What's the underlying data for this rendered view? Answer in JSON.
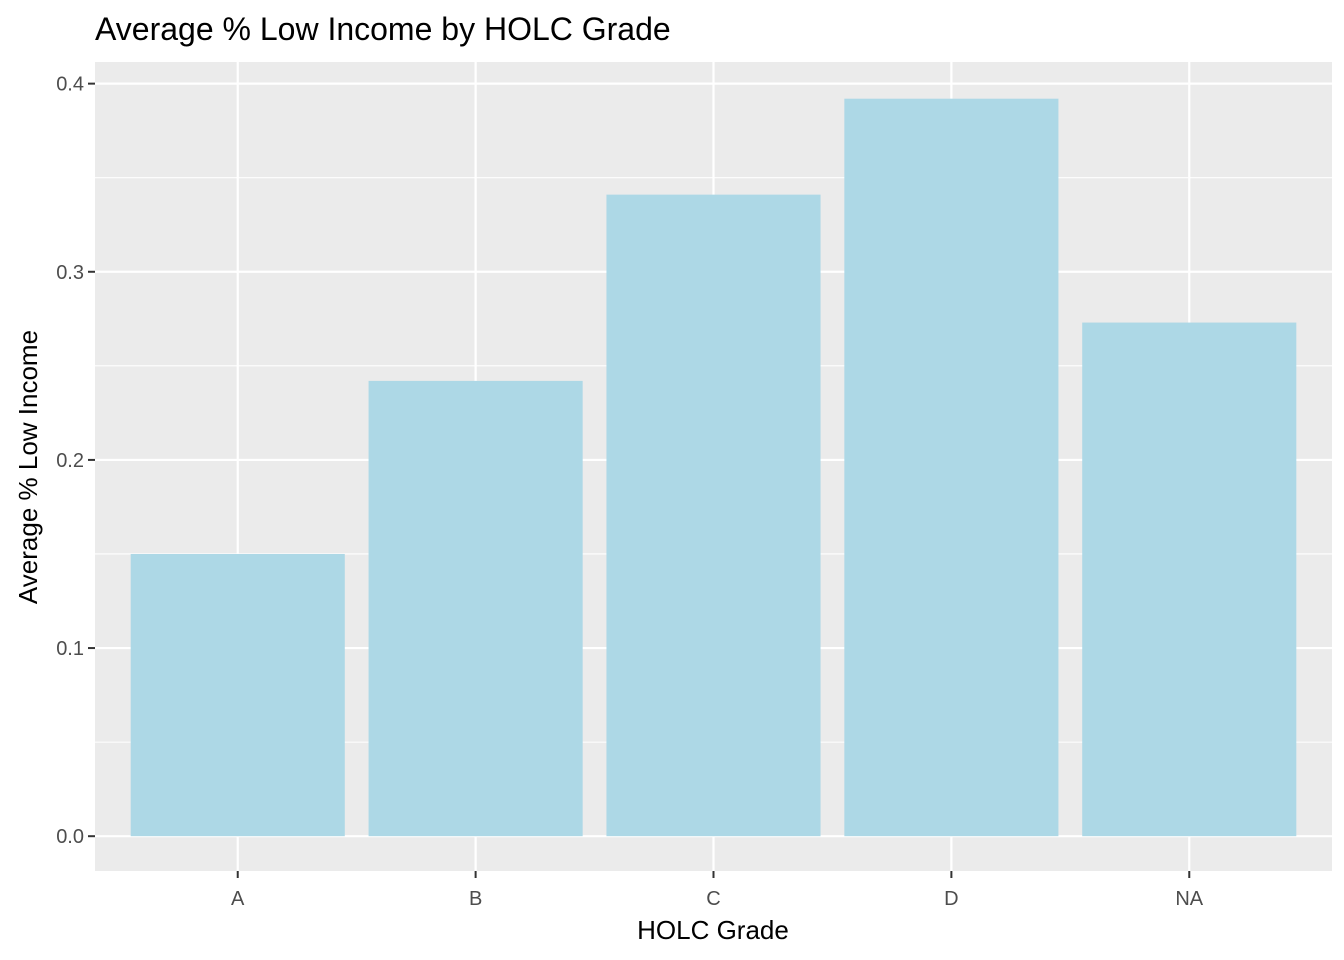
{
  "chart_data": {
    "type": "bar",
    "title": "Average % Low Income by HOLC Grade",
    "xlabel": "HOLC Grade",
    "ylabel": "Average % Low Income",
    "categories": [
      "A",
      "B",
      "C",
      "D",
      "NA"
    ],
    "values": [
      0.15,
      0.242,
      0.341,
      0.392,
      0.273
    ],
    "ylim": [
      -0.0185,
      0.4115
    ],
    "yticks": [
      0.0,
      0.1,
      0.2,
      0.3,
      0.4
    ],
    "ytick_labels": [
      "0.0",
      "0.1",
      "0.2",
      "0.3",
      "0.4"
    ],
    "grid": true,
    "legend": "none",
    "colors": {
      "bar": "#add8e6",
      "panel_background": "#ebebeb",
      "grid": "#ffffff",
      "tick_mark": "#333333"
    }
  }
}
